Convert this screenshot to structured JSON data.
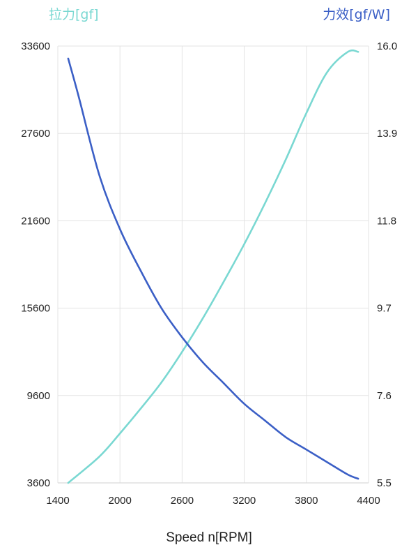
{
  "chart_data": {
    "type": "line",
    "xlabel": "Speed n[RPM]",
    "x_ticks": [
      "1400",
      "2000",
      "2600",
      "3200",
      "3800",
      "4400"
    ],
    "xlim": [
      1400,
      4400
    ],
    "y_left": {
      "label": "拉力[gf]",
      "color": "#7ad8d2",
      "ticks": [
        "33600",
        "27600",
        "21600",
        "15600",
        "9600",
        "3600"
      ],
      "ylim": [
        3600,
        33600
      ]
    },
    "y_right": {
      "label": "力效[gf/W]",
      "color": "#3b5fc6",
      "ticks": [
        "16.0",
        "13.9",
        "11.8",
        "9.7",
        "7.6",
        "5.5"
      ],
      "ylim": [
        5.5,
        16.0
      ]
    },
    "grid": true,
    "series": [
      {
        "axis": "left",
        "color": "#7ad8d2",
        "x": [
          1500,
          1800,
          2000,
          2200,
          2400,
          2600,
          2800,
          3000,
          3200,
          3400,
          3600,
          3800,
          4000,
          4200,
          4300
        ],
        "values": [
          3600,
          5400,
          7000,
          8700,
          10500,
          12600,
          14900,
          17400,
          20000,
          22800,
          25800,
          29000,
          31800,
          33200,
          33200
        ]
      },
      {
        "axis": "right",
        "color": "#3b5fc6",
        "x": [
          1500,
          1600,
          1800,
          2000,
          2200,
          2400,
          2600,
          2800,
          3000,
          3200,
          3400,
          3600,
          3800,
          4000,
          4200,
          4300
        ],
        "values": [
          15.7,
          14.8,
          12.9,
          11.6,
          10.6,
          9.7,
          9.0,
          8.4,
          7.9,
          7.4,
          7.0,
          6.6,
          6.3,
          6.0,
          5.7,
          5.6
        ]
      }
    ]
  }
}
